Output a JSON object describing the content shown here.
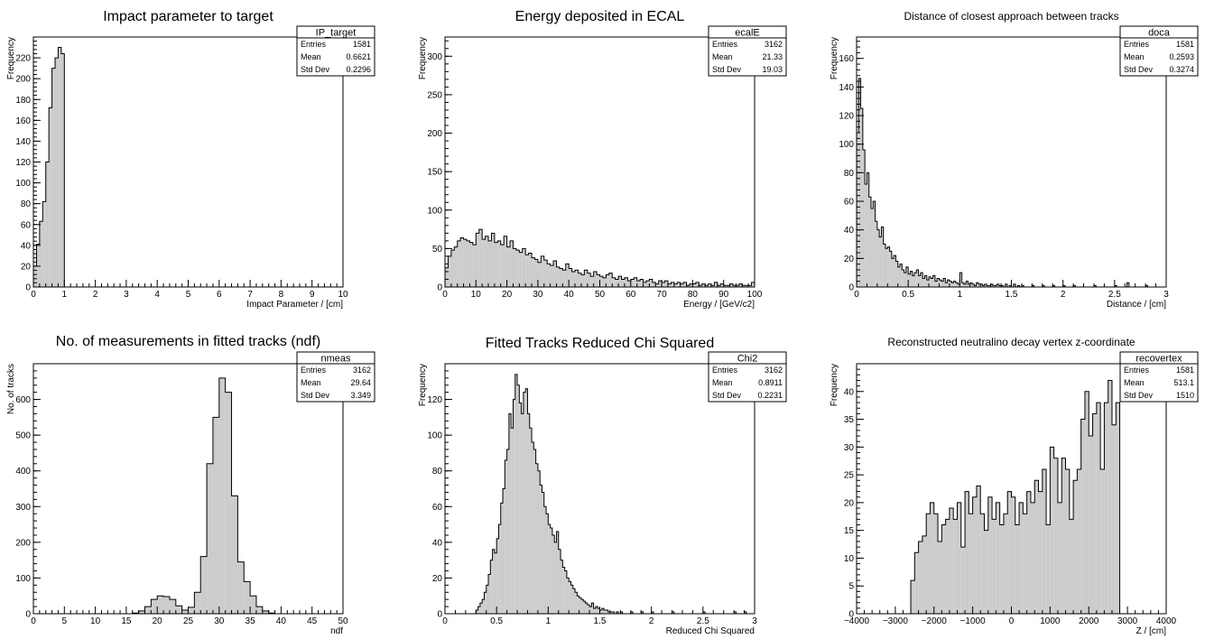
{
  "chart_data": [
    {
      "type": "bar",
      "title": "Impact parameter to target",
      "xlabel": "Impact Parameter / [cm]",
      "ylabel": "Frequency",
      "xlim": [
        0,
        10
      ],
      "ylim": [
        0,
        240
      ],
      "xticks": [
        0,
        1,
        2,
        3,
        4,
        5,
        6,
        7,
        8,
        9,
        10
      ],
      "yticks": [
        0,
        20,
        40,
        60,
        80,
        100,
        120,
        140,
        160,
        180,
        200,
        220
      ],
      "bin_width": 0.1,
      "x": [
        0.0,
        0.1,
        0.2,
        0.3,
        0.4,
        0.5,
        0.6,
        0.7,
        0.8,
        0.9
      ],
      "values": [
        20,
        41,
        63,
        82,
        120,
        172,
        210,
        220,
        230,
        224
      ],
      "stats": {
        "name": "IP_target",
        "rows": [
          [
            "Entries",
            "1581"
          ],
          [
            "Mean",
            "0.6621"
          ],
          [
            "Std Dev",
            "0.2296"
          ]
        ]
      }
    },
    {
      "type": "bar",
      "title": "Energy deposited in ECAL",
      "xlabel": "Energy / [GeV/c2]",
      "ylabel": "Frequency",
      "xlim": [
        0,
        100
      ],
      "ylim": [
        0,
        325
      ],
      "xticks": [
        0,
        10,
        20,
        30,
        40,
        50,
        60,
        70,
        80,
        90,
        100
      ],
      "yticks": [
        0,
        50,
        100,
        150,
        200,
        250,
        300
      ],
      "bin_width": 1,
      "x": [
        0,
        1,
        2,
        3,
        4,
        5,
        6,
        7,
        8,
        9,
        10,
        11,
        12,
        13,
        14,
        15,
        16,
        17,
        18,
        19,
        20,
        21,
        22,
        23,
        24,
        25,
        26,
        27,
        28,
        29,
        30,
        31,
        32,
        33,
        34,
        35,
        36,
        37,
        38,
        39,
        40,
        41,
        42,
        43,
        44,
        45,
        46,
        47,
        48,
        49,
        50,
        51,
        52,
        53,
        54,
        55,
        56,
        57,
        58,
        59,
        60,
        61,
        62,
        63,
        64,
        65,
        66,
        67,
        68,
        69,
        70,
        71,
        72,
        73,
        74,
        75,
        76,
        77,
        78,
        79,
        80,
        81,
        82,
        83,
        84,
        85,
        86,
        87,
        88,
        89,
        90,
        91,
        92,
        93,
        94,
        95,
        96,
        97,
        98,
        99
      ],
      "values": [
        25,
        40,
        48,
        52,
        60,
        64,
        62,
        60,
        58,
        55,
        70,
        75,
        62,
        66,
        60,
        70,
        58,
        60,
        55,
        66,
        52,
        60,
        50,
        48,
        45,
        50,
        42,
        44,
        38,
        36,
        32,
        40,
        35,
        30,
        28,
        34,
        26,
        24,
        22,
        30,
        24,
        20,
        22,
        18,
        16,
        22,
        18,
        14,
        20,
        16,
        14,
        12,
        16,
        18,
        12,
        10,
        14,
        10,
        12,
        8,
        10,
        12,
        8,
        10,
        6,
        8,
        10,
        6,
        4,
        8,
        6,
        8,
        4,
        6,
        4,
        6,
        4,
        6,
        2,
        4,
        4,
        6,
        2,
        4,
        2,
        4,
        2,
        6,
        2,
        4,
        2,
        2,
        4,
        2,
        2,
        4,
        2,
        2,
        2,
        6
      ],
      "stats": {
        "name": "ecalE",
        "rows": [
          [
            "Entries",
            "3162"
          ],
          [
            "Mean",
            "21.33"
          ],
          [
            "Std Dev",
            "19.03"
          ]
        ]
      }
    },
    {
      "type": "bar",
      "title": "Distance of closest approach between tracks",
      "xlabel": "Distance / [cm]",
      "ylabel": "Frequency",
      "xlim": [
        0,
        3
      ],
      "ylim": [
        0,
        175
      ],
      "xticks": [
        0,
        0.5,
        1,
        1.5,
        2,
        2.5,
        3
      ],
      "yticks": [
        0,
        20,
        40,
        60,
        80,
        100,
        120,
        140,
        160
      ],
      "bin_width": 0.02,
      "x": [
        0.0,
        0.02,
        0.04,
        0.06,
        0.08,
        0.1,
        0.12,
        0.14,
        0.16,
        0.18,
        0.2,
        0.22,
        0.24,
        0.26,
        0.28,
        0.3,
        0.32,
        0.34,
        0.36,
        0.38,
        0.4,
        0.42,
        0.44,
        0.46,
        0.48,
        0.5,
        0.52,
        0.54,
        0.56,
        0.58,
        0.6,
        0.62,
        0.64,
        0.66,
        0.68,
        0.7,
        0.72,
        0.74,
        0.76,
        0.78,
        0.8,
        0.82,
        0.84,
        0.86,
        0.88,
        0.9,
        0.92,
        0.94,
        0.96,
        0.98,
        1.0,
        1.02,
        1.04,
        1.06,
        1.08,
        1.1,
        1.12,
        1.14,
        1.16,
        1.18,
        1.2,
        1.22,
        1.24,
        1.26,
        1.28,
        1.3,
        1.32,
        1.34,
        1.36,
        1.38,
        1.4,
        1.44,
        1.48,
        1.52,
        1.56,
        1.6,
        1.7,
        1.8,
        1.9,
        2.0,
        2.1,
        2.3,
        2.5,
        2.62,
        2.8
      ],
      "values": [
        108,
        146,
        125,
        96,
        72,
        80,
        63,
        55,
        60,
        46,
        40,
        35,
        42,
        30,
        27,
        28,
        25,
        20,
        22,
        18,
        14,
        16,
        12,
        10,
        14,
        9,
        11,
        8,
        10,
        12,
        8,
        10,
        6,
        8,
        5,
        7,
        6,
        8,
        4,
        6,
        5,
        4,
        6,
        3,
        5,
        4,
        3,
        4,
        3,
        2,
        10,
        3,
        2,
        4,
        2,
        3,
        2,
        1,
        3,
        2,
        2,
        1,
        2,
        1,
        1,
        2,
        1,
        1,
        2,
        1,
        1,
        2,
        1,
        2,
        1,
        1,
        1,
        1,
        1,
        1,
        1,
        1,
        1,
        3,
        1
      ],
      "stats": {
        "name": "doca",
        "rows": [
          [
            "Entries",
            "1581"
          ],
          [
            "Mean",
            "0.2593"
          ],
          [
            "Std Dev",
            "0.3274"
          ]
        ]
      }
    },
    {
      "type": "bar",
      "title": "No. of measurements in fitted tracks (ndf)",
      "xlabel": "ndf",
      "ylabel": "No. of tracks",
      "xlim": [
        0,
        50
      ],
      "ylim": [
        0,
        700
      ],
      "xticks": [
        0,
        5,
        10,
        15,
        20,
        25,
        30,
        35,
        40,
        45,
        50
      ],
      "yticks": [
        0,
        100,
        200,
        300,
        400,
        500,
        600
      ],
      "bin_width": 1,
      "x": [
        16,
        17,
        18,
        19,
        20,
        21,
        22,
        23,
        24,
        25,
        26,
        27,
        28,
        29,
        30,
        31,
        32,
        33,
        34,
        35,
        36,
        37,
        38
      ],
      "values": [
        2,
        8,
        20,
        40,
        50,
        48,
        40,
        22,
        10,
        18,
        60,
        160,
        420,
        550,
        660,
        620,
        330,
        145,
        90,
        50,
        20,
        8,
        2
      ],
      "stats": {
        "name": "nmeas",
        "rows": [
          [
            "Entries",
            "3162"
          ],
          [
            "Mean",
            "29.64"
          ],
          [
            "Std Dev",
            "3.349"
          ]
        ]
      }
    },
    {
      "type": "bar",
      "title": "Fitted Tracks Reduced Chi Squared",
      "xlabel": "Reduced Chi Squared",
      "ylabel": "Frequency",
      "xlim": [
        0,
        3
      ],
      "ylim": [
        0,
        140
      ],
      "xticks": [
        0,
        0.5,
        1,
        1.5,
        2,
        2.5,
        3
      ],
      "yticks": [
        0,
        20,
        40,
        60,
        80,
        100,
        120
      ],
      "bin_width": 0.02,
      "x": [
        0.3,
        0.32,
        0.34,
        0.36,
        0.38,
        0.4,
        0.42,
        0.44,
        0.46,
        0.48,
        0.5,
        0.52,
        0.54,
        0.56,
        0.58,
        0.6,
        0.62,
        0.64,
        0.66,
        0.68,
        0.7,
        0.72,
        0.74,
        0.76,
        0.78,
        0.8,
        0.82,
        0.84,
        0.86,
        0.88,
        0.9,
        0.92,
        0.94,
        0.96,
        0.98,
        1.0,
        1.02,
        1.04,
        1.06,
        1.08,
        1.1,
        1.12,
        1.14,
        1.16,
        1.18,
        1.2,
        1.22,
        1.24,
        1.26,
        1.28,
        1.3,
        1.32,
        1.34,
        1.36,
        1.38,
        1.4,
        1.42,
        1.44,
        1.46,
        1.48,
        1.5,
        1.52,
        1.54,
        1.56,
        1.58,
        1.6,
        1.62,
        1.66,
        1.7,
        1.8,
        1.9,
        2.0,
        2.2,
        2.5,
        2.8,
        2.9
      ],
      "values": [
        2,
        4,
        6,
        8,
        12,
        16,
        22,
        30,
        36,
        34,
        42,
        50,
        62,
        70,
        86,
        92,
        112,
        104,
        120,
        134,
        128,
        118,
        112,
        124,
        126,
        112,
        104,
        96,
        92,
        84,
        80,
        72,
        68,
        60,
        56,
        50,
        48,
        44,
        40,
        46,
        36,
        30,
        26,
        24,
        20,
        18,
        16,
        14,
        12,
        10,
        9,
        8,
        7,
        6,
        5,
        4,
        6,
        3,
        4,
        3,
        2,
        3,
        2,
        2,
        1,
        1,
        1,
        1,
        1,
        1,
        1,
        1,
        1,
        1,
        1,
        1
      ],
      "stats": {
        "name": "Chi2",
        "rows": [
          [
            "Entries",
            "3162"
          ],
          [
            "Mean",
            "0.8911"
          ],
          [
            "Std Dev",
            "0.2231"
          ]
        ]
      }
    },
    {
      "type": "bar",
      "title": "Reconstructed neutralino decay vertex z-coordinate",
      "xlabel": "Z / [cm]",
      "ylabel": "Frequency",
      "xlim": [
        -4000,
        4000
      ],
      "ylim": [
        0,
        45
      ],
      "xticks": [
        -4000,
        -3000,
        -2000,
        -1000,
        0,
        1000,
        2000,
        3000,
        4000
      ],
      "yticks": [
        0,
        5,
        10,
        15,
        20,
        25,
        30,
        35,
        40
      ],
      "bin_width": 100,
      "x": [
        -2600,
        -2500,
        -2400,
        -2300,
        -2200,
        -2100,
        -2000,
        -1900,
        -1800,
        -1700,
        -1600,
        -1500,
        -1400,
        -1300,
        -1200,
        -1100,
        -1000,
        -900,
        -800,
        -700,
        -600,
        -500,
        -400,
        -300,
        -200,
        -100,
        0,
        100,
        200,
        300,
        400,
        500,
        600,
        700,
        800,
        900,
        1000,
        1100,
        1200,
        1300,
        1400,
        1500,
        1600,
        1700,
        1800,
        1900,
        2000,
        2100,
        2200,
        2300,
        2400,
        2500,
        2600,
        2700
      ],
      "values": [
        6,
        11,
        13,
        14,
        18,
        20,
        18,
        13,
        16,
        17,
        19,
        17,
        20,
        12,
        22,
        18,
        21,
        23,
        18,
        15,
        21,
        17,
        20,
        16,
        18,
        22,
        21,
        16,
        20,
        18,
        22,
        20,
        24,
        22,
        26,
        16,
        30,
        28,
        20,
        28,
        26,
        17,
        24,
        26,
        35,
        40,
        32,
        36,
        38,
        26,
        38,
        42,
        34,
        38
      ],
      "stats": {
        "name": "recovertex",
        "rows": [
          [
            "Entries",
            "1581"
          ],
          [
            "Mean",
            "513.1"
          ],
          [
            "Std Dev",
            "1510"
          ]
        ]
      }
    }
  ]
}
